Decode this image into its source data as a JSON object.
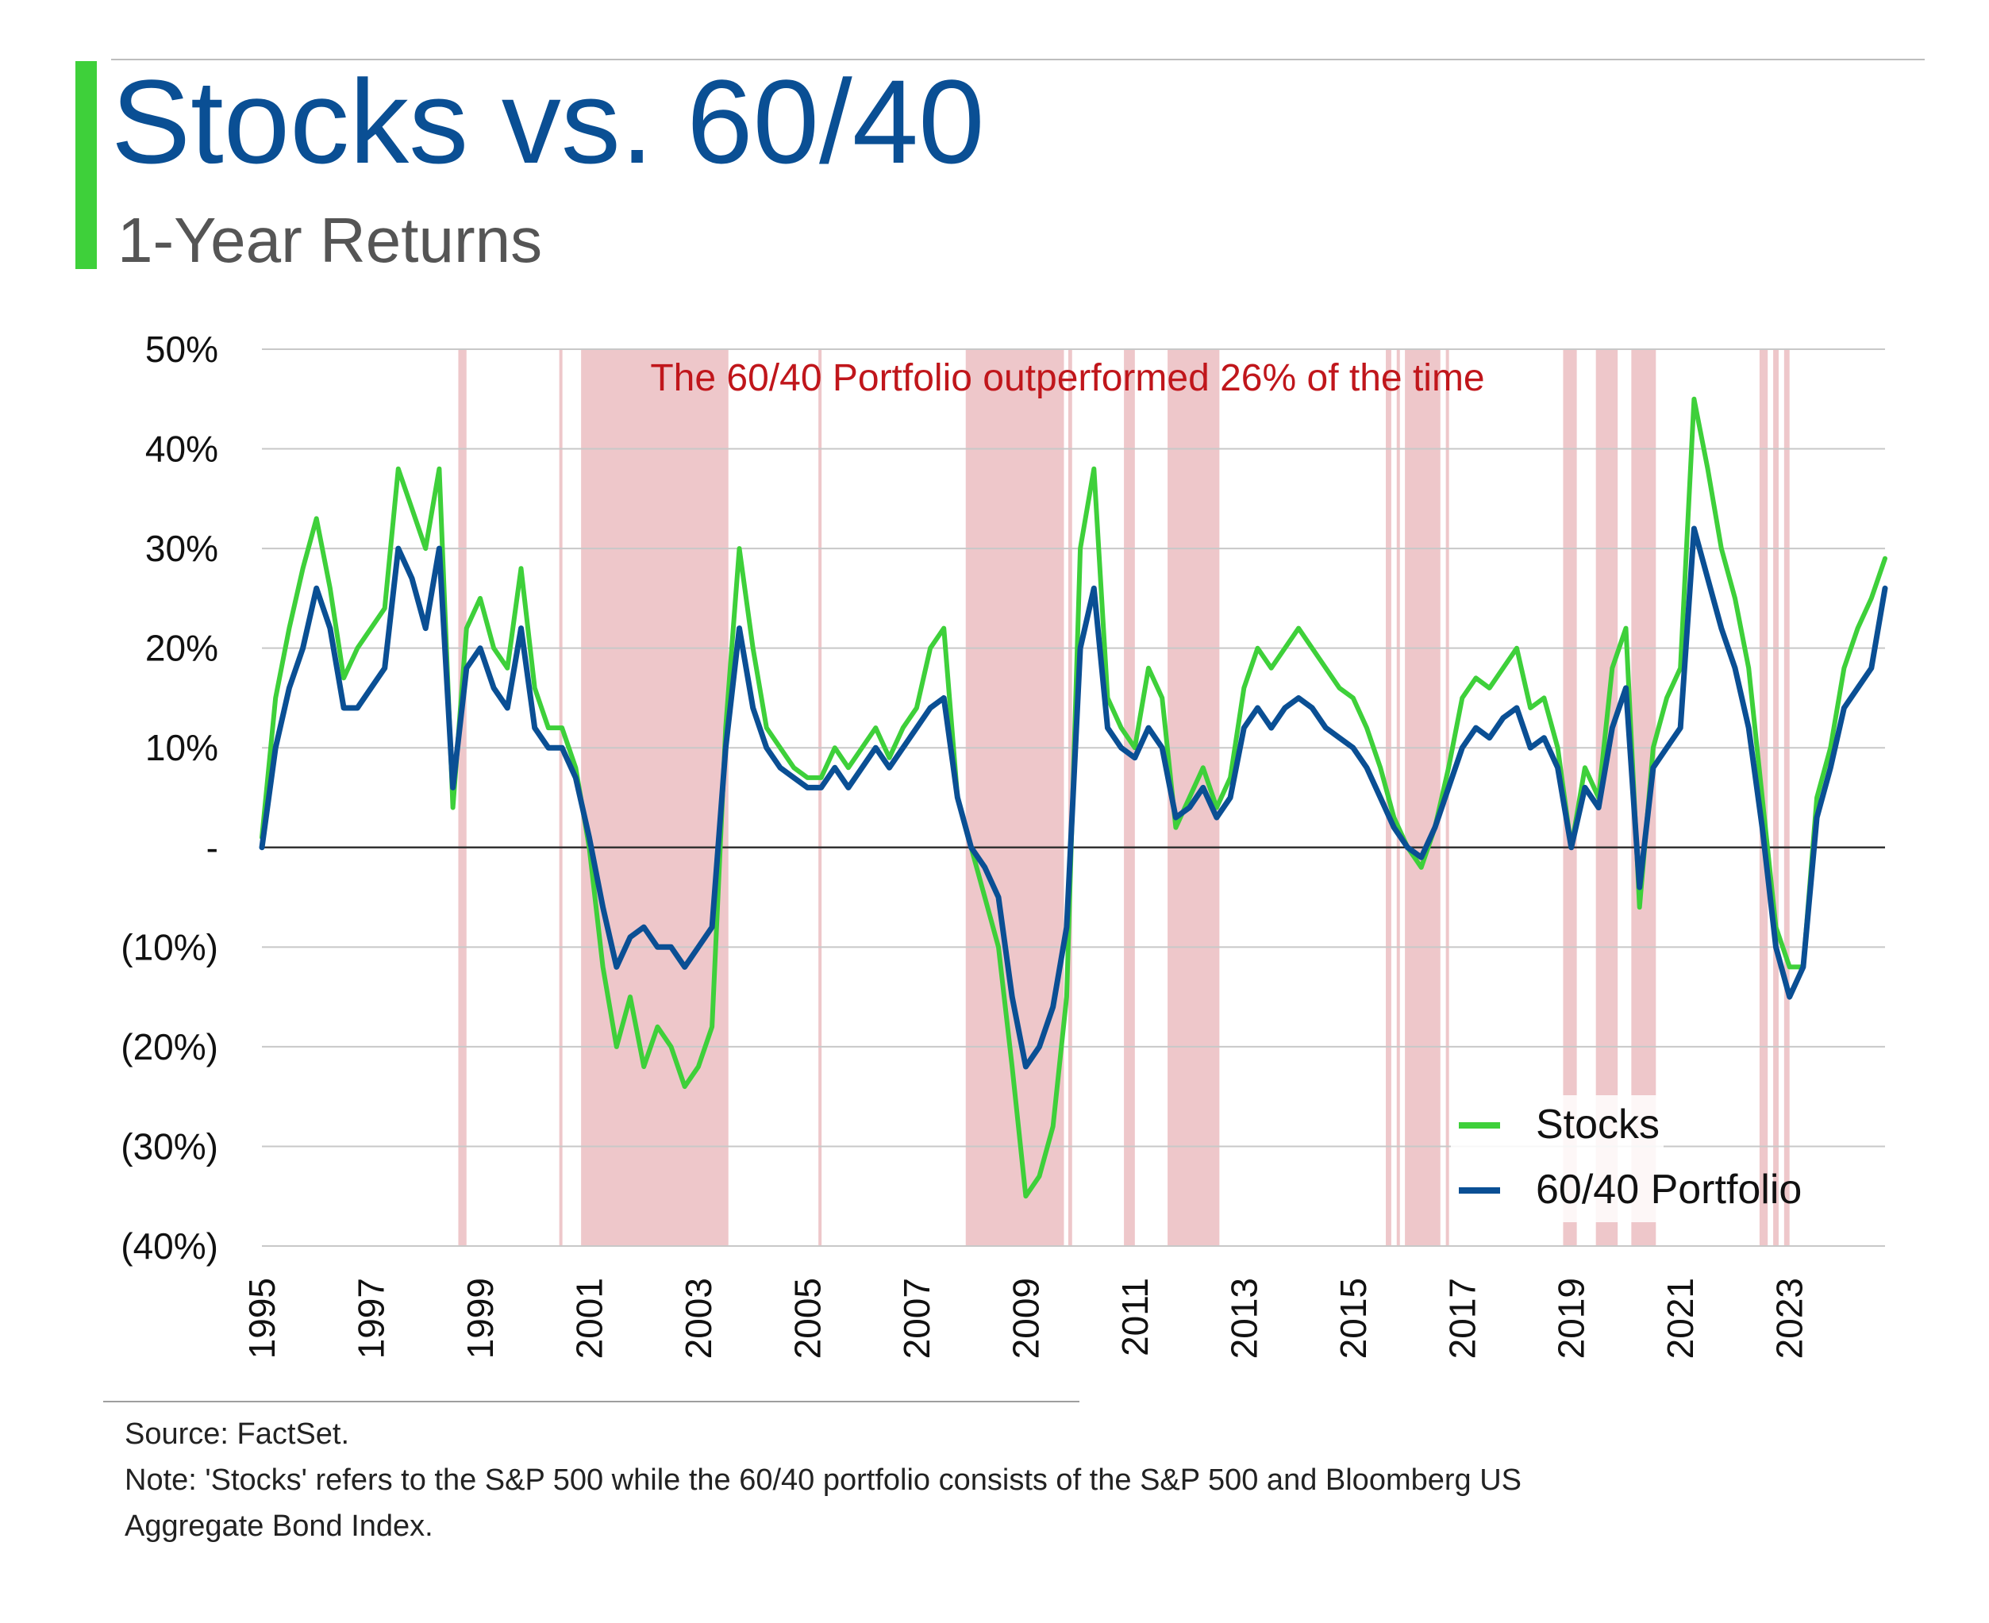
{
  "header": {
    "title": "Stocks vs. 60/40",
    "subtitle": "1-Year Returns",
    "title_color": "#0a4f94",
    "accent_color": "#3ed03a"
  },
  "footer": {
    "source": "Source: FactSet.",
    "note_line1": "Note: 'Stocks' refers to the S&P 500 while the 60/40 portfolio consists of the S&P 500 and Bloomberg US",
    "note_line2": "Aggregate Bond Index."
  },
  "chart_data": {
    "type": "line",
    "title": "",
    "xlabel": "",
    "ylabel": "",
    "xlim": [
      1995.0,
      2024.75
    ],
    "ylim": [
      -40,
      50
    ],
    "y_ticks": [
      -40,
      -30,
      -20,
      -10,
      0,
      10,
      20,
      30,
      40,
      50
    ],
    "y_tick_labels": [
      "(40%)",
      "(30%)",
      "(20%)",
      "(10%)",
      "-",
      "10%",
      "20%",
      "30%",
      "40%",
      "50%"
    ],
    "x_ticks": [
      1995,
      1997,
      1999,
      2001,
      2003,
      2005,
      2007,
      2009,
      2011,
      2013,
      2015,
      2017,
      2019,
      2021,
      2023
    ],
    "x_tick_labels": [
      "1995",
      "1997",
      "1999",
      "2001",
      "2003",
      "2005",
      "2007",
      "2009",
      "2011",
      "2013",
      "2015",
      "2017",
      "2019",
      "2021",
      "2023"
    ],
    "grid": true,
    "legend_position": "bottom-right",
    "annotation": "The 60/40 Portfolio outperformed 26% of the time",
    "annotation_color": "#c0161b",
    "shading_color": "#e8b4b8",
    "outperform_periods": [
      [
        1998.6,
        1998.75
      ],
      [
        2000.45,
        2000.5
      ],
      [
        2000.85,
        2003.55
      ],
      [
        2005.2,
        2005.25
      ],
      [
        2007.9,
        2009.7
      ],
      [
        2009.78,
        2009.85
      ],
      [
        2010.8,
        2011.0
      ],
      [
        2011.6,
        2012.55
      ],
      [
        2015.6,
        2015.7
      ],
      [
        2015.8,
        2015.85
      ],
      [
        2015.95,
        2016.6
      ],
      [
        2016.7,
        2016.75
      ],
      [
        2018.85,
        2019.1
      ],
      [
        2019.45,
        2019.85
      ],
      [
        2020.1,
        2020.55
      ],
      [
        2022.45,
        2022.6
      ],
      [
        2022.7,
        2022.8
      ],
      [
        2022.9,
        2023.0
      ]
    ],
    "x": [
      1995.0,
      1995.25,
      1995.5,
      1995.75,
      1996.0,
      1996.25,
      1996.5,
      1996.75,
      1997.0,
      1997.25,
      1997.5,
      1997.75,
      1998.0,
      1998.25,
      1998.5,
      1998.75,
      1999.0,
      1999.25,
      1999.5,
      1999.75,
      2000.0,
      2000.25,
      2000.5,
      2000.75,
      2001.0,
      2001.25,
      2001.5,
      2001.75,
      2002.0,
      2002.25,
      2002.5,
      2002.75,
      2003.0,
      2003.25,
      2003.5,
      2003.75,
      2004.0,
      2004.25,
      2004.5,
      2004.75,
      2005.0,
      2005.25,
      2005.5,
      2005.75,
      2006.0,
      2006.25,
      2006.5,
      2006.75,
      2007.0,
      2007.25,
      2007.5,
      2007.75,
      2008.0,
      2008.25,
      2008.5,
      2008.75,
      2009.0,
      2009.25,
      2009.5,
      2009.75,
      2010.0,
      2010.25,
      2010.5,
      2010.75,
      2011.0,
      2011.25,
      2011.5,
      2011.75,
      2012.0,
      2012.25,
      2012.5,
      2012.75,
      2013.0,
      2013.25,
      2013.5,
      2013.75,
      2014.0,
      2014.25,
      2014.5,
      2014.75,
      2015.0,
      2015.25,
      2015.5,
      2015.75,
      2016.0,
      2016.25,
      2016.5,
      2016.75,
      2017.0,
      2017.25,
      2017.5,
      2017.75,
      2018.0,
      2018.25,
      2018.5,
      2018.75,
      2019.0,
      2019.25,
      2019.5,
      2019.75,
      2020.0,
      2020.25,
      2020.5,
      2020.75,
      2021.0,
      2021.25,
      2021.5,
      2021.75,
      2022.0,
      2022.25,
      2022.5,
      2022.75,
      2023.0,
      2023.25,
      2023.5,
      2023.75,
      2024.0,
      2024.25,
      2024.5,
      2024.75
    ],
    "series": [
      {
        "name": "Stocks",
        "color": "#3ed03a",
        "values": [
          1,
          15,
          22,
          28,
          33,
          26,
          17,
          20,
          22,
          24,
          38,
          34,
          30,
          38,
          4,
          22,
          25,
          20,
          18,
          28,
          16,
          12,
          12,
          8,
          0,
          -12,
          -20,
          -15,
          -22,
          -18,
          -20,
          -24,
          -22,
          -18,
          12,
          30,
          20,
          12,
          10,
          8,
          7,
          7,
          10,
          8,
          10,
          12,
          9,
          12,
          14,
          20,
          22,
          5,
          0,
          -5,
          -10,
          -22,
          -35,
          -33,
          -28,
          -15,
          30,
          38,
          15,
          12,
          10,
          18,
          15,
          2,
          5,
          8,
          4,
          7,
          16,
          20,
          18,
          20,
          22,
          20,
          18,
          16,
          15,
          12,
          8,
          3,
          0,
          -2,
          2,
          8,
          15,
          17,
          16,
          18,
          20,
          14,
          15,
          10,
          0,
          8,
          5,
          18,
          22,
          -6,
          10,
          15,
          18,
          45,
          38,
          30,
          25,
          18,
          5,
          -8,
          -12,
          -12,
          5,
          10,
          18,
          22,
          25,
          29
        ]
      },
      {
        "name": "60/40 Portfolio",
        "color": "#0a4f94",
        "values": [
          0,
          10,
          16,
          20,
          26,
          22,
          14,
          14,
          16,
          18,
          30,
          27,
          22,
          30,
          6,
          18,
          20,
          16,
          14,
          22,
          12,
          10,
          10,
          7,
          1,
          -6,
          -12,
          -9,
          -8,
          -10,
          -10,
          -12,
          -10,
          -8,
          10,
          22,
          14,
          10,
          8,
          7,
          6,
          6,
          8,
          6,
          8,
          10,
          8,
          10,
          12,
          14,
          15,
          5,
          0,
          -2,
          -5,
          -15,
          -22,
          -20,
          -16,
          -8,
          20,
          26,
          12,
          10,
          9,
          12,
          10,
          3,
          4,
          6,
          3,
          5,
          12,
          14,
          12,
          14,
          15,
          14,
          12,
          11,
          10,
          8,
          5,
          2,
          0,
          -1,
          2,
          6,
          10,
          12,
          11,
          13,
          14,
          10,
          11,
          8,
          0,
          6,
          4,
          12,
          16,
          -4,
          8,
          10,
          12,
          32,
          27,
          22,
          18,
          12,
          2,
          -10,
          -15,
          -12,
          3,
          8,
          14,
          16,
          18,
          26
        ]
      }
    ]
  }
}
